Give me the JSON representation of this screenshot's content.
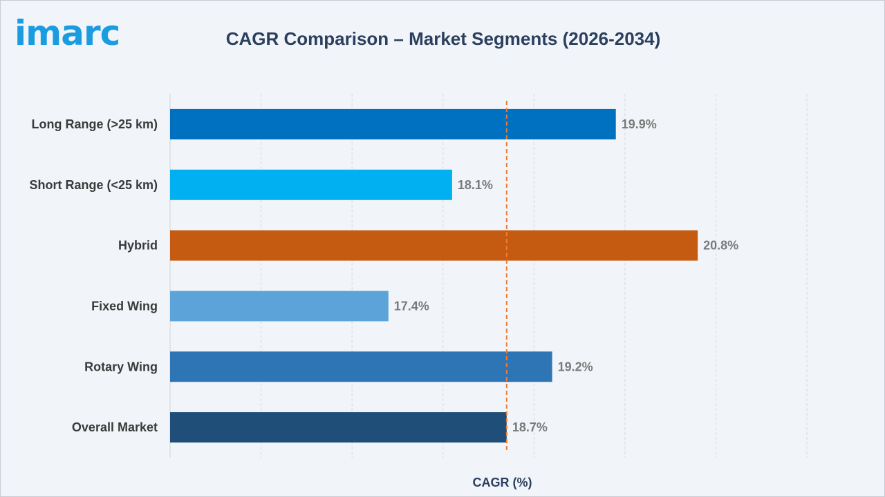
{
  "logo": {
    "text": "imarc",
    "color": "#1a9ce0"
  },
  "chart_data": {
    "type": "bar",
    "orientation": "horizontal",
    "title": "CAGR Comparison – Market Segments (2026-2034)",
    "xlabel": "CAGR (%)",
    "ylabel": "",
    "categories": [
      "Long Range (>25 km)",
      "Short Range (<25 km)",
      "Hybrid",
      "Fixed Wing",
      "Rotary Wing",
      "Overall Market"
    ],
    "values": [
      19.9,
      18.1,
      20.8,
      17.4,
      19.2,
      18.7
    ],
    "value_labels": [
      "19.9%",
      "18.1%",
      "20.8%",
      "17.4%",
      "19.2%",
      "18.7%"
    ],
    "colors": [
      "#0070c0",
      "#00b0f0",
      "#c55a11",
      "#5ba3d9",
      "#2e75b6",
      "#1f4e79"
    ],
    "xlim": [
      15,
      22
    ],
    "reference_line": {
      "value": 18.7,
      "style": "dashed",
      "color": "#ed7d31"
    },
    "grid": true,
    "tick_labels_shown": false
  }
}
